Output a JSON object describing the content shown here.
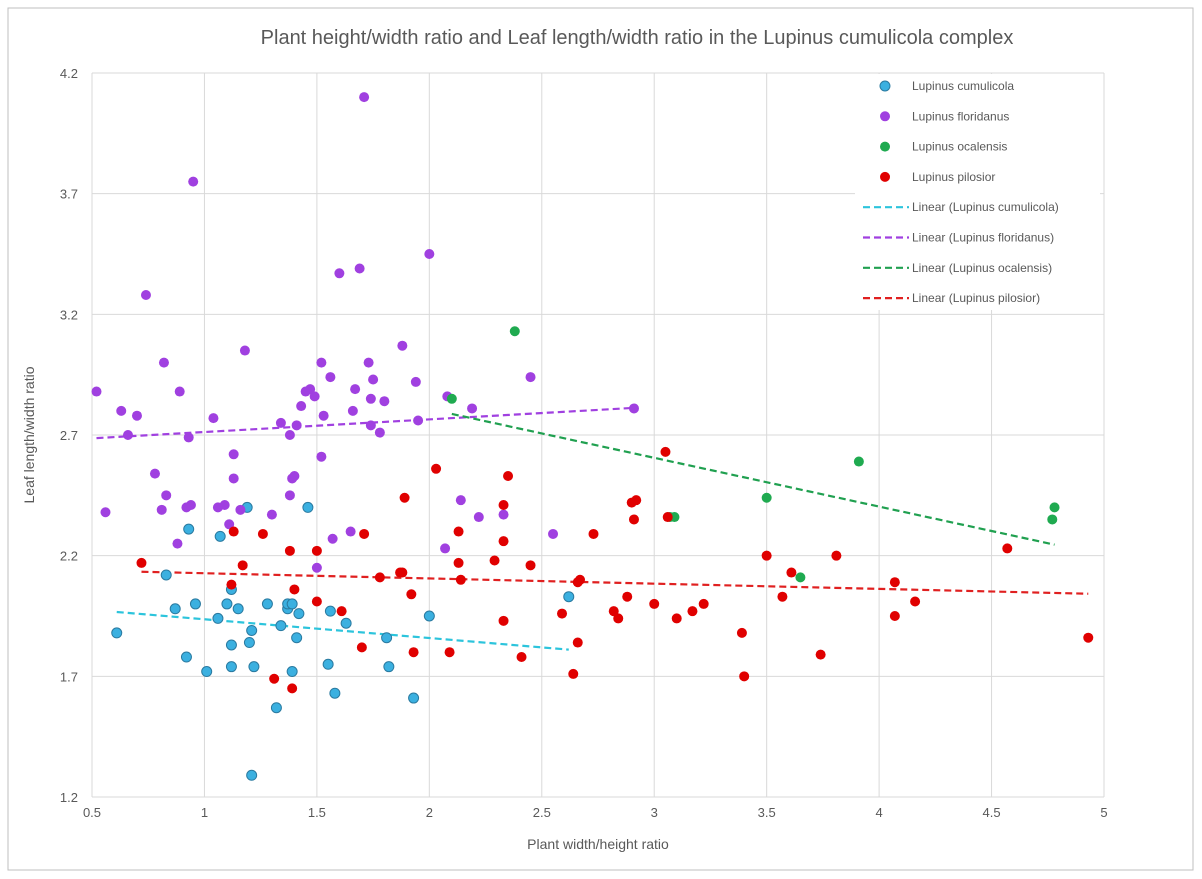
{
  "chart_data": {
    "type": "scatter",
    "title": "Plant height/width ratio and Leaf length/width ratio in the Lupinus cumulicola complex",
    "x_label": "Plant width/height ratio",
    "y_label": "Leaf length/width ratio",
    "xlim": [
      0.5,
      5
    ],
    "ylim": [
      1.2,
      4.2
    ],
    "xticks": [
      0.5,
      1,
      1.5,
      2,
      2.5,
      3,
      3.5,
      4,
      4.5,
      5
    ],
    "yticks": [
      1.2,
      1.7,
      2.2,
      2.7,
      3.2,
      3.7,
      4.2
    ],
    "grid": true,
    "legend": "top-right",
    "series": [
      {
        "name": "Lupinus cumulicola",
        "color": "#3bb0e0",
        "trendline_name": "Linear (Lupinus cumulicola)",
        "trendline_color": "#2cc4dc",
        "x": [
          0.61,
          0.83,
          0.87,
          0.92,
          0.93,
          0.96,
          1.01,
          1.06,
          1.07,
          1.1,
          1.12,
          1.12,
          1.12,
          1.15,
          1.19,
          1.2,
          1.21,
          1.21,
          1.22,
          1.28,
          1.32,
          1.34,
          1.37,
          1.37,
          1.39,
          1.39,
          1.41,
          1.42,
          1.46,
          1.55,
          1.56,
          1.58,
          1.63,
          1.81,
          1.82,
          1.93,
          2.0,
          2.62
        ],
        "y": [
          1.88,
          2.12,
          1.98,
          1.78,
          2.31,
          2.0,
          1.72,
          1.94,
          2.28,
          2.0,
          1.74,
          1.83,
          2.06,
          1.98,
          2.4,
          1.84,
          1.89,
          1.29,
          1.74,
          2.0,
          1.57,
          1.91,
          1.98,
          2.0,
          1.72,
          2.0,
          1.86,
          1.96,
          2.4,
          1.75,
          1.97,
          1.63,
          1.92,
          1.86,
          1.74,
          1.61,
          1.95,
          2.03
        ]
      },
      {
        "name": "Lupinus floridanus",
        "color": "#a040e0",
        "trendline_name": "Linear (Lupinus floridanus)",
        "trendline_color": "#a040e0",
        "x": [
          0.52,
          0.56,
          0.63,
          0.66,
          0.7,
          0.74,
          0.78,
          0.81,
          0.82,
          0.83,
          0.88,
          0.89,
          0.92,
          0.93,
          0.94,
          0.95,
          1.04,
          1.06,
          1.09,
          1.11,
          1.13,
          1.13,
          1.16,
          1.18,
          1.3,
          1.34,
          1.38,
          1.38,
          1.39,
          1.4,
          1.41,
          1.43,
          1.45,
          1.47,
          1.49,
          1.5,
          1.52,
          1.52,
          1.53,
          1.56,
          1.57,
          1.6,
          1.65,
          1.66,
          1.67,
          1.69,
          1.71,
          1.73,
          1.74,
          1.74,
          1.75,
          1.78,
          1.8,
          1.88,
          1.94,
          1.95,
          2.0,
          2.07,
          2.08,
          2.14,
          2.19,
          2.22,
          2.33,
          2.45,
          2.55,
          2.91
        ],
        "y": [
          2.88,
          2.38,
          2.8,
          2.7,
          2.78,
          3.28,
          2.54,
          2.39,
          3.0,
          2.45,
          2.25,
          2.88,
          2.4,
          2.69,
          2.41,
          3.75,
          2.77,
          2.4,
          2.41,
          2.33,
          2.62,
          2.52,
          2.39,
          3.05,
          2.37,
          2.75,
          2.7,
          2.45,
          2.52,
          2.53,
          2.74,
          2.82,
          2.88,
          2.89,
          2.86,
          2.15,
          2.61,
          3.0,
          2.78,
          2.94,
          2.27,
          3.37,
          2.3,
          2.8,
          2.89,
          3.39,
          4.1,
          3.0,
          2.74,
          2.85,
          2.93,
          2.71,
          2.84,
          3.07,
          2.92,
          2.76,
          3.45,
          2.23,
          2.86,
          2.43,
          2.81,
          2.36,
          2.37,
          2.94,
          2.29,
          2.81
        ]
      },
      {
        "name": "Lupinus ocalensis",
        "color": "#1faa50",
        "trendline_name": "Linear (Lupinus ocalensis)",
        "trendline_color": "#20a050",
        "x": [
          2.1,
          2.38,
          3.07,
          3.09,
          3.5,
          3.65,
          3.91,
          4.77,
          4.78
        ],
        "y": [
          2.85,
          3.13,
          2.36,
          2.36,
          2.44,
          2.11,
          2.59,
          2.35,
          2.4
        ]
      },
      {
        "name": "Lupinus pilosior",
        "color": "#e00000",
        "trendline_name": "Linear (Lupinus pilosior)",
        "trendline_color": "#e02020",
        "x": [
          0.72,
          1.12,
          1.13,
          1.17,
          1.26,
          1.31,
          1.38,
          1.39,
          1.4,
          1.5,
          1.5,
          1.61,
          1.7,
          1.71,
          1.78,
          1.87,
          1.88,
          1.89,
          1.92,
          1.93,
          2.03,
          2.09,
          2.13,
          2.13,
          2.14,
          2.29,
          2.33,
          2.33,
          2.33,
          2.35,
          2.41,
          2.45,
          2.59,
          2.64,
          2.66,
          2.66,
          2.67,
          2.73,
          2.82,
          2.84,
          2.88,
          2.9,
          2.91,
          2.92,
          3.0,
          3.05,
          3.06,
          3.1,
          3.17,
          3.22,
          3.39,
          3.4,
          3.5,
          3.57,
          3.61,
          3.74,
          3.81,
          4.07,
          4.07,
          4.16,
          4.57,
          4.93
        ],
        "y": [
          2.17,
          2.08,
          2.3,
          2.16,
          2.29,
          1.69,
          2.22,
          1.65,
          2.06,
          2.22,
          2.01,
          1.97,
          1.82,
          2.29,
          2.11,
          2.13,
          2.13,
          2.44,
          2.04,
          1.8,
          2.56,
          1.8,
          2.3,
          2.17,
          2.1,
          2.18,
          2.26,
          2.41,
          1.93,
          2.53,
          1.78,
          2.16,
          1.96,
          1.71,
          1.84,
          2.09,
          2.1,
          2.29,
          1.97,
          1.94,
          2.03,
          2.42,
          2.35,
          2.43,
          2.0,
          2.63,
          2.36,
          1.94,
          1.97,
          2.0,
          1.88,
          1.7,
          2.2,
          2.03,
          2.13,
          1.79,
          2.2,
          1.95,
          2.09,
          2.01,
          2.23,
          1.86
        ]
      }
    ]
  }
}
